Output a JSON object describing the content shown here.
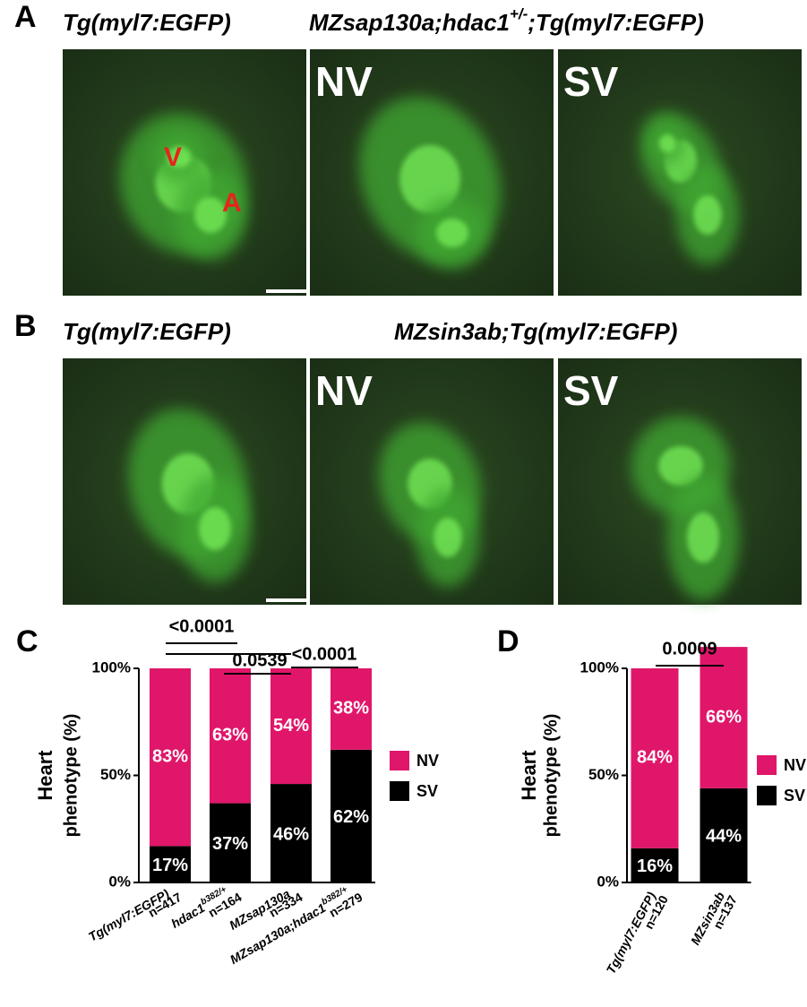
{
  "figure": {
    "image_panels": [
      {
        "label": "A",
        "headers": [
          {
            "parts": [
              "Tg(myl7:EGFP)"
            ]
          },
          {
            "parts": [
              "MZsap130a;hdac1",
              "+/-",
              ";Tg(myl7:EGFP)"
            ]
          }
        ],
        "image_labels": [
          "NV",
          "SV"
        ],
        "chamber_labels": [
          "V",
          "A"
        ]
      },
      {
        "label": "B",
        "headers": [
          {
            "parts": [
              "Tg(myl7:EGFP)"
            ]
          },
          {
            "parts": [
              "MZsin3ab;Tg(myl7:EGFP)"
            ]
          }
        ],
        "image_labels": [
          "NV",
          "SV"
        ]
      }
    ]
  },
  "chart_data": [
    {
      "type": "bar",
      "label": "C",
      "ylabel": [
        "Heart",
        "phenotype (%)"
      ],
      "categories": [
        "Tg(myl7:EGFP)",
        "hdac1",
        "MZsap130a",
        "MZsap130a;hdac1"
      ],
      "category_sups": [
        null,
        "b382/+",
        null,
        "b382/+"
      ],
      "category_counts": [
        "n=417",
        "n=164",
        "n=334",
        "n=279"
      ],
      "series": [
        {
          "name": "SV",
          "color": "#000000",
          "values": [
            17,
            37,
            46,
            62
          ],
          "value_labels": [
            "17%",
            "37%",
            "46%",
            "62%"
          ]
        },
        {
          "name": "NV",
          "color": "#e0166a",
          "values": [
            83,
            63,
            54,
            38
          ],
          "value_labels": [
            "83%",
            "63%",
            "54%",
            "38%"
          ]
        }
      ],
      "ylim": [
        0,
        100
      ],
      "yticks": [
        {
          "value": 0,
          "label": "0%"
        },
        {
          "value": 50,
          "label": "50%"
        },
        {
          "value": 100,
          "label": "100%"
        }
      ],
      "annotations": [
        "<0.0001",
        "0.0539",
        "<0.0001"
      ]
    },
    {
      "type": "bar",
      "label": "D",
      "ylabel": [
        "Heart",
        "phenotype (%)"
      ],
      "categories": [
        "Tg(myl7:EGFP)",
        "MZsin3ab"
      ],
      "category_sups": [
        null,
        null
      ],
      "category_counts": [
        "n=120",
        "n=137"
      ],
      "series": [
        {
          "name": "SV",
          "color": "#000000",
          "values": [
            16,
            44
          ],
          "value_labels": [
            "16%",
            "44%"
          ]
        },
        {
          "name": "NV",
          "color": "#e0166a",
          "values": [
            84,
            66
          ],
          "value_labels": [
            "84%",
            "66%"
          ]
        }
      ],
      "ylim": [
        0,
        100
      ],
      "yticks": [
        {
          "value": 0,
          "label": "0%"
        },
        {
          "value": 50,
          "label": "50%"
        },
        {
          "value": 100,
          "label": "100%"
        }
      ],
      "annotations": [
        "0.0009"
      ]
    }
  ]
}
